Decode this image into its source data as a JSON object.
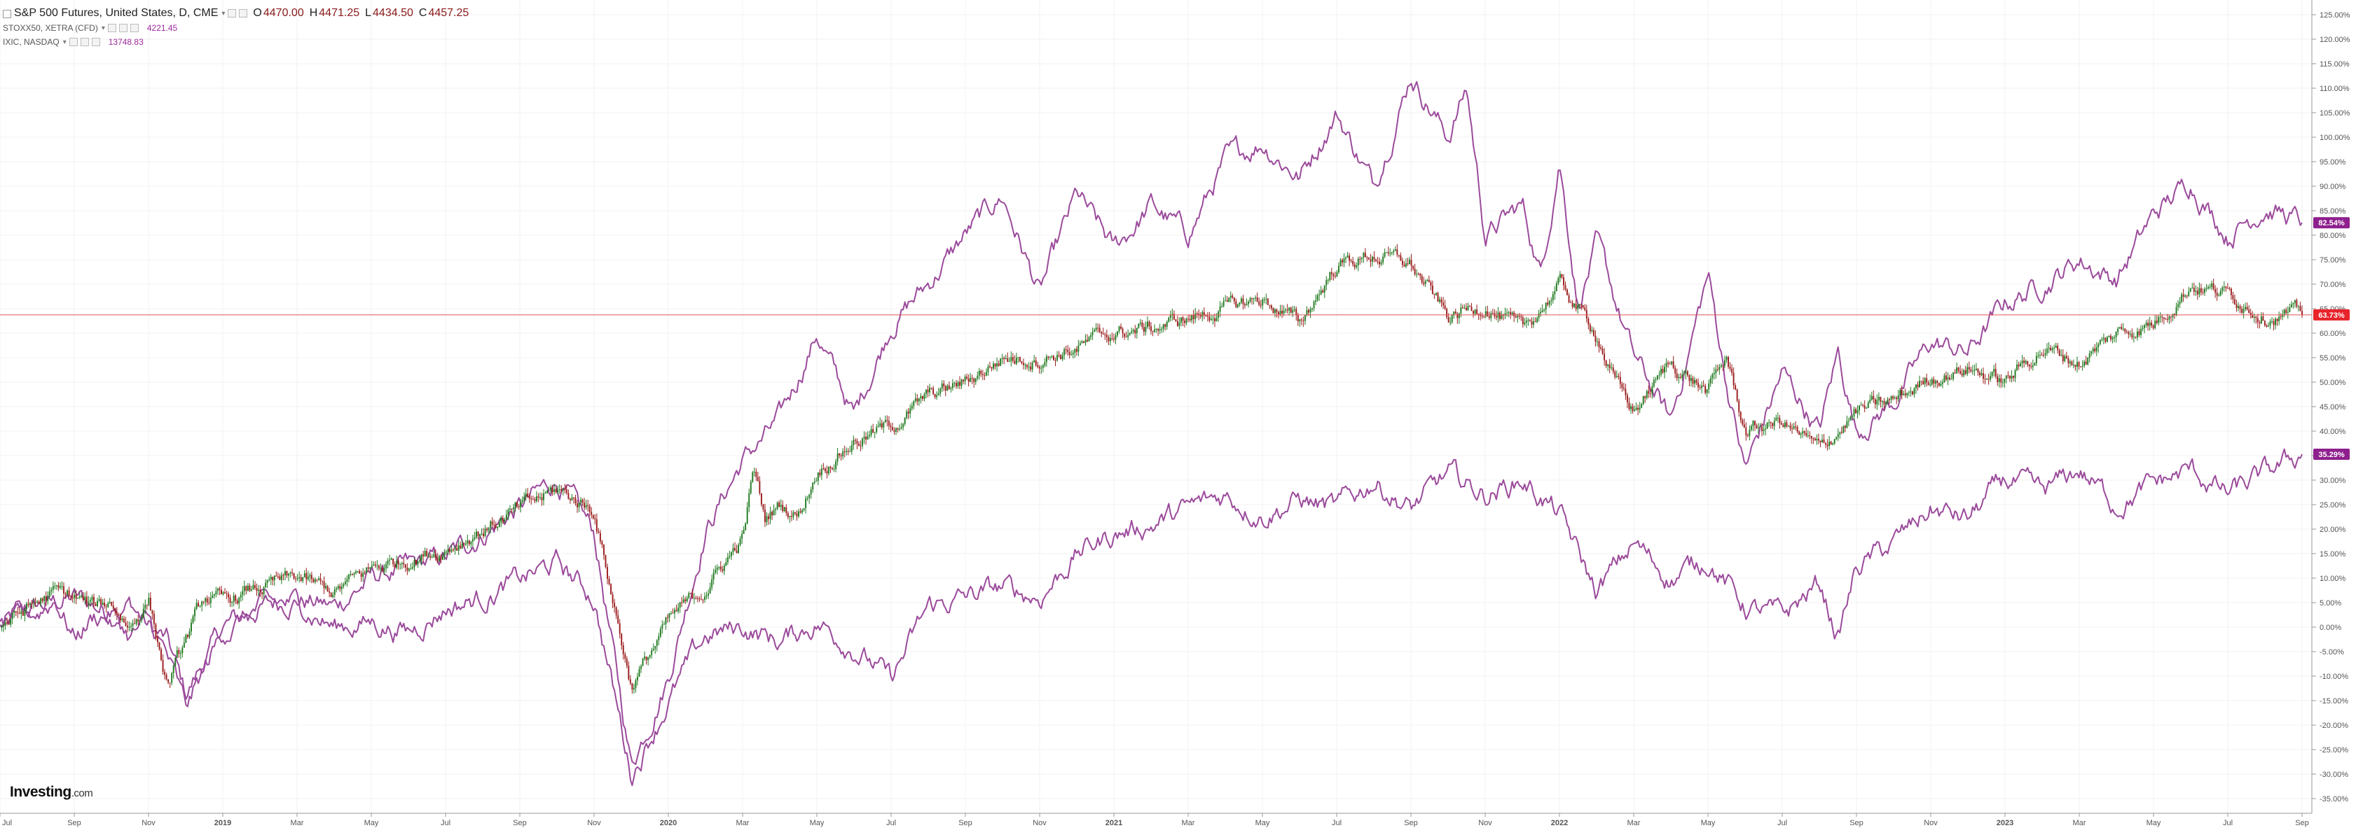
{
  "legend": {
    "main": {
      "title": "S&P 500 Futures, United States, D, CME",
      "o_label": "O",
      "o_value": "4470.00",
      "h_label": "H",
      "h_value": "4471.25",
      "l_label": "L",
      "l_value": "4434.50",
      "c_label": "C",
      "c_value": "4457.25"
    },
    "compare": [
      {
        "name": "STOXX50, XETRA (CFD)",
        "value": "4221.45"
      },
      {
        "name": "IXIC, NASDAQ",
        "value": "13748.83"
      }
    ]
  },
  "logo": {
    "text": "Investing",
    "suffix": ".com"
  },
  "colors": {
    "up_candle": "#1f7a1f",
    "down_candle": "#9b1b1b",
    "compare_line": "#9b4a9b",
    "last_price_line": "#e05555",
    "last_price_badge": "#e8232a",
    "compare_badge": "#8e1f8e",
    "grid": "#f0f0f0",
    "axis_text": "#555555"
  },
  "chart_data": {
    "type": "line",
    "y_unit": "percent change",
    "ylim": [
      -38,
      128
    ],
    "grid": true,
    "y_ticks": [
      "125.00%",
      "120.00%",
      "115.00%",
      "110.00%",
      "105.00%",
      "100.00%",
      "95.00%",
      "90.00%",
      "85.00%",
      "80.00%",
      "75.00%",
      "70.00%",
      "65.00%",
      "60.00%",
      "55.00%",
      "50.00%",
      "45.00%",
      "40.00%",
      "35.00%",
      "30.00%",
      "25.00%",
      "20.00%",
      "15.00%",
      "10.00%",
      "5.00%",
      "0.00%",
      "-5.00%",
      "-10.00%",
      "-15.00%",
      "-20.00%",
      "-25.00%",
      "-30.00%",
      "-35.00%"
    ],
    "x_ticks": [
      "Jul",
      "Sep",
      "Nov",
      "2019",
      "Mar",
      "May",
      "Jul",
      "Sep",
      "Nov",
      "2020",
      "Mar",
      "May",
      "Jul",
      "Sep",
      "Nov",
      "2021",
      "Mar",
      "May",
      "Jul",
      "Sep",
      "Nov",
      "2022",
      "Mar",
      "May",
      "Jul",
      "Sep",
      "Nov",
      "2023",
      "Mar",
      "May",
      "Jul",
      "Sep"
    ],
    "badges": [
      {
        "label": "82.54%",
        "value": 82.54,
        "series": "IXIC, NASDAQ"
      },
      {
        "label": "63.73%",
        "value": 63.73,
        "series": "S&P 500 Futures"
      },
      {
        "label": "35.29%",
        "value": 35.29,
        "series": "STOXX50, XETRA (CFD)"
      }
    ],
    "series": [
      {
        "name": "S&P 500 Futures, United States, D, CME",
        "style": "candlestick",
        "x": [
          0,
          1,
          1.5,
          2,
          2.5,
          3,
          3.5,
          4,
          4.5,
          5.5,
          6,
          7,
          8,
          9,
          10,
          11,
          12,
          13,
          15,
          16,
          17,
          18,
          19,
          19.6,
          20,
          20.3,
          20.6,
          21,
          21.5,
          22,
          23,
          24,
          25,
          26,
          27,
          28,
          29,
          30,
          31,
          32,
          33,
          34,
          35,
          36,
          37,
          38,
          39,
          40,
          41,
          42,
          43,
          43.5,
          44,
          45,
          46,
          46.5,
          47,
          48,
          49,
          50,
          51,
          52,
          53,
          54,
          55,
          56,
          57,
          58,
          59,
          60,
          61,
          62
        ],
        "values": [
          0,
          5,
          7,
          6,
          4,
          5,
          0,
          6,
          -12,
          6,
          5,
          8,
          10,
          7,
          12,
          14,
          16,
          20,
          28,
          24,
          -12,
          1,
          8,
          14,
          18,
          32,
          22,
          25,
          23,
          32,
          38,
          41,
          47,
          50,
          55,
          55,
          57,
          60,
          61,
          63,
          65,
          67,
          62,
          74,
          76,
          74,
          63,
          66,
          60,
          70,
          60,
          50,
          44,
          54,
          48,
          55,
          40,
          42,
          36,
          44,
          46,
          51,
          53,
          50,
          57,
          54,
          60,
          62,
          70,
          68,
          64,
          63.73
        ]
      },
      {
        "name": "IXIC, NASDAQ",
        "style": "line",
        "x": [
          0,
          1,
          2,
          3,
          3.5,
          4,
          4.5,
          5,
          6,
          7,
          8,
          9,
          10,
          11,
          12,
          13,
          15,
          16,
          17,
          18,
          19,
          20,
          21,
          22,
          23,
          24,
          25,
          26,
          27,
          28,
          29,
          30,
          31,
          32,
          33,
          34,
          35,
          36,
          37,
          38,
          39,
          39.5,
          40,
          41,
          41.5,
          42,
          42.5,
          43,
          44,
          45,
          46,
          46.5,
          47,
          48,
          49,
          49.5,
          50,
          51,
          52,
          53,
          54,
          55,
          56,
          57,
          58,
          59,
          60,
          61,
          62
        ],
        "values": [
          0,
          4,
          6,
          3,
          5,
          0,
          -3,
          -14,
          0,
          4,
          6,
          4,
          10,
          12,
          14,
          19,
          30,
          19,
          -28,
          -10,
          20,
          34,
          42,
          60,
          43,
          62,
          70,
          80,
          88,
          68,
          88,
          77,
          86,
          80,
          95,
          99,
          92,
          105,
          90,
          113,
          100,
          110,
          80,
          86,
          72,
          96,
          66,
          78,
          55,
          42,
          72,
          50,
          32,
          52,
          40,
          56,
          40,
          46,
          58,
          56,
          66,
          70,
          75,
          71,
          84,
          91,
          80,
          86,
          82.54
        ]
      },
      {
        "name": "STOXX50, XETRA (CFD)",
        "style": "line",
        "x": [
          0,
          1,
          1.5,
          2,
          2.5,
          3,
          3.5,
          4,
          4.5,
          5,
          6,
          7,
          8,
          9,
          10,
          11,
          12,
          13,
          15,
          16,
          17,
          18,
          19,
          20,
          21,
          22,
          23,
          24,
          25,
          26,
          27,
          28,
          29,
          30,
          31,
          32,
          33,
          34,
          35,
          36,
          37,
          38,
          39,
          40,
          41,
          42,
          43,
          44,
          45,
          46,
          47,
          48,
          49,
          49.5,
          50,
          51,
          52,
          53,
          54,
          55,
          56,
          57,
          58,
          59,
          60,
          61,
          62
        ],
        "values": [
          0,
          3,
          6,
          -2,
          2,
          3,
          -2,
          1,
          -6,
          -17,
          -1,
          4,
          5,
          0,
          1,
          -1,
          4,
          6,
          13,
          6,
          -30,
          -15,
          -2,
          0,
          -3,
          1,
          -4,
          -11,
          4,
          6,
          8,
          6,
          15,
          19,
          21,
          24,
          27,
          23,
          26,
          24,
          30,
          24,
          31,
          27,
          30,
          23,
          7,
          17,
          10,
          14,
          4,
          2,
          9,
          -2,
          12,
          17,
          24,
          22,
          30,
          27,
          32,
          25,
          29,
          32,
          27,
          31,
          35.29
        ]
      }
    ]
  }
}
